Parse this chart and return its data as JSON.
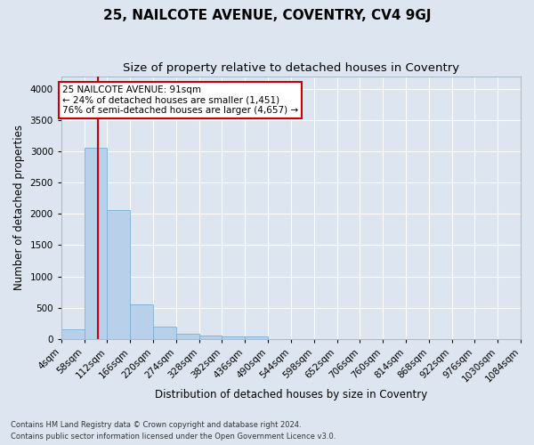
{
  "title": "25, NAILCOTE AVENUE, COVENTRY, CV4 9GJ",
  "subtitle": "Size of property relative to detached houses in Coventry",
  "xlabel": "Distribution of detached houses by size in Coventry",
  "ylabel": "Number of detached properties",
  "footer_line1": "Contains HM Land Registry data © Crown copyright and database right 2024.",
  "footer_line2": "Contains public sector information licensed under the Open Government Licence v3.0.",
  "bar_edges": [
    4,
    58,
    112,
    166,
    220,
    274,
    328,
    382,
    436,
    490,
    544,
    598,
    652,
    706,
    760,
    814,
    868,
    922,
    976,
    1030,
    1084
  ],
  "bar_heights": [
    150,
    3050,
    2060,
    550,
    200,
    80,
    55,
    40,
    40,
    0,
    0,
    0,
    0,
    0,
    0,
    0,
    0,
    0,
    0,
    0
  ],
  "bar_color": "#b8d0ea",
  "bar_edge_color": "#7aafd4",
  "vline_x": 91,
  "vline_color": "#cc0000",
  "annotation_text": "25 NAILCOTE AVENUE: 91sqm\n← 24% of detached houses are smaller (1,451)\n76% of semi-detached houses are larger (4,657) →",
  "annotation_box_color": "#ffffff",
  "annotation_box_edge_color": "#cc0000",
  "ylim": [
    0,
    4200
  ],
  "yticks": [
    0,
    500,
    1000,
    1500,
    2000,
    2500,
    3000,
    3500,
    4000
  ],
  "bg_color": "#dde6f0",
  "plot_bg_color": "#dde6f0",
  "title_fontsize": 11,
  "subtitle_fontsize": 9.5,
  "axis_label_fontsize": 8.5,
  "tick_fontsize": 7.5,
  "annotation_fontsize": 7.5,
  "fig_width": 6.0,
  "fig_height": 5.0,
  "dpi": 100
}
